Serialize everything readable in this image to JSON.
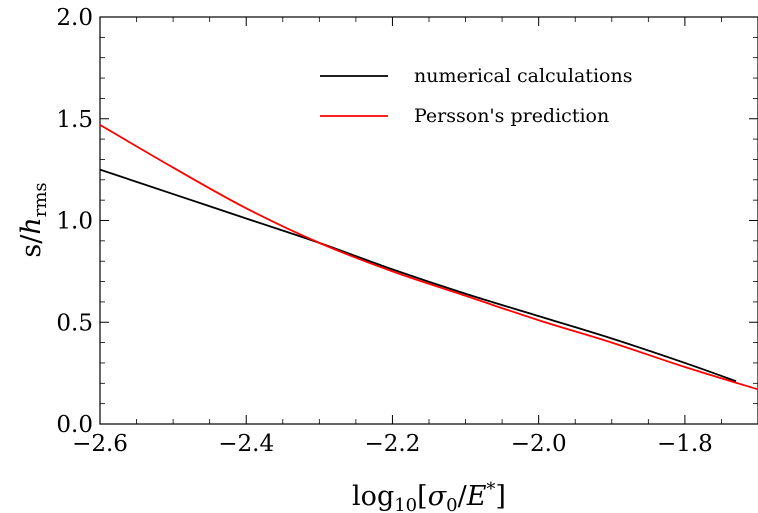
{
  "chart_data": {
    "type": "line",
    "title": "",
    "xlabel": {
      "prefix": "log",
      "sub": "10",
      "open": "[",
      "sigma": "σ",
      "sigma_sub": "0",
      "slash": "/",
      "E": "E",
      "E_sup": "*",
      "close": "]"
    },
    "ylabel": {
      "s": "s",
      "slash": "/",
      "h": "h",
      "h_sub": "rms"
    },
    "xlim": [
      -2.6,
      -1.7
    ],
    "ylim": [
      0.0,
      2.0
    ],
    "xticks": [
      -2.6,
      -2.4,
      -2.2,
      -2.0,
      -1.8
    ],
    "xtick_labels": [
      "−2.6",
      "−2.4",
      "−2.2",
      "−2.0",
      "−1.8"
    ],
    "yticks": [
      0.0,
      0.5,
      1.0,
      1.5,
      2.0
    ],
    "ytick_labels": [
      "0.0",
      "0.5",
      "1.0",
      "1.5",
      "2.0"
    ],
    "grid": false,
    "legend_position": "top-right",
    "series": [
      {
        "name": "numerical calculations",
        "color": "#000000",
        "x": [
          -2.6,
          -2.5,
          -2.4,
          -2.3,
          -2.2,
          -2.1,
          -2.0,
          -1.9,
          -1.8,
          -1.73
        ],
        "y": [
          1.25,
          1.13,
          1.01,
          0.89,
          0.76,
          0.64,
          0.53,
          0.42,
          0.3,
          0.21
        ]
      },
      {
        "name": "Persson's prediction",
        "color": "#ff0000",
        "x": [
          -2.6,
          -2.5,
          -2.4,
          -2.3,
          -2.2,
          -2.1,
          -2.0,
          -1.9,
          -1.8,
          -1.7
        ],
        "y": [
          1.47,
          1.26,
          1.06,
          0.89,
          0.75,
          0.63,
          0.51,
          0.4,
          0.28,
          0.17
        ]
      }
    ]
  }
}
